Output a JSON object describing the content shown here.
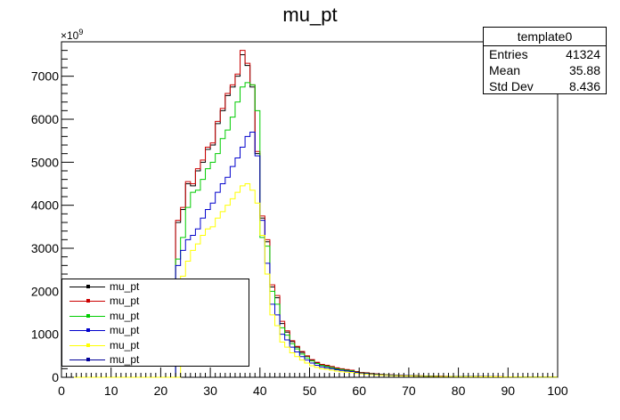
{
  "chart_data": {
    "type": "histogram",
    "title": "mu_pt",
    "xlim": [
      0,
      100
    ],
    "ylim": [
      0,
      7800
    ],
    "y_exponent_label": "×10",
    "y_exponent": "9",
    "x_ticks": [
      0,
      10,
      20,
      30,
      40,
      50,
      60,
      70,
      80,
      90,
      100
    ],
    "y_ticks": [
      0,
      1000,
      2000,
      3000,
      4000,
      5000,
      6000,
      7000
    ],
    "bin_width": 1,
    "x_start": 0,
    "series": [
      {
        "name": "mu_pt",
        "color": "#000000",
        "values": [
          0,
          0,
          0,
          0,
          0,
          0,
          0,
          0,
          0,
          0,
          0,
          0,
          0,
          0,
          0,
          0,
          0,
          0,
          0,
          0,
          0,
          0,
          0,
          3600,
          3900,
          4500,
          4450,
          4800,
          5000,
          5300,
          5400,
          5900,
          6200,
          6550,
          6750,
          7000,
          7500,
          7250,
          6750,
          5200,
          3700,
          3150,
          2100,
          1850,
          1250,
          1050,
          830,
          700,
          580,
          490,
          400,
          340,
          290,
          270,
          240,
          210,
          190,
          170,
          160,
          130,
          110,
          100,
          85,
          75,
          65,
          60,
          55,
          50,
          45,
          42,
          40,
          36,
          33,
          30,
          28,
          26,
          24,
          22,
          21,
          20,
          19,
          18,
          17,
          16,
          15,
          14,
          13,
          12,
          12,
          11,
          10,
          10,
          9,
          9,
          8,
          8,
          7,
          7,
          6,
          6
        ]
      },
      {
        "name": "mu_pt",
        "color": "#cc0000",
        "values": [
          0,
          0,
          0,
          0,
          0,
          0,
          0,
          0,
          0,
          0,
          0,
          0,
          0,
          0,
          0,
          0,
          0,
          0,
          0,
          0,
          0,
          0,
          0,
          3650,
          3950,
          4550,
          4500,
          4850,
          5050,
          5350,
          5450,
          5950,
          6250,
          6600,
          6800,
          7050,
          7600,
          7300,
          6800,
          5250,
          3750,
          3200,
          2150,
          1900,
          1300,
          1080,
          850,
          720,
          600,
          500,
          410,
          350,
          300,
          280,
          250,
          220,
          200,
          180,
          165,
          135,
          115,
          105,
          90,
          80,
          70,
          62,
          57,
          52,
          47,
          44,
          41,
          37,
          34,
          31,
          29,
          27,
          25,
          23,
          22,
          21,
          20,
          19,
          18,
          17,
          16,
          15,
          14,
          13,
          12,
          11,
          10,
          10,
          9,
          9,
          8,
          8,
          7,
          7,
          6,
          6
        ]
      },
      {
        "name": "mu_pt",
        "color": "#00cc00",
        "values": [
          0,
          0,
          0,
          0,
          0,
          0,
          0,
          0,
          0,
          0,
          0,
          0,
          0,
          0,
          0,
          0,
          0,
          0,
          0,
          0,
          0,
          0,
          0,
          2750,
          3250,
          3950,
          4300,
          4350,
          4600,
          4850,
          5000,
          5200,
          5550,
          5750,
          6050,
          6400,
          6750,
          6850,
          6800,
          6200,
          3250,
          3050,
          2000,
          1700,
          1150,
          980,
          780,
          660,
          540,
          450,
          380,
          320,
          275,
          250,
          225,
          195,
          180,
          160,
          150,
          120,
          100,
          95,
          80,
          70,
          62,
          56,
          51,
          47,
          42,
          40,
          37,
          34,
          31,
          28,
          26,
          24,
          22,
          21,
          20,
          19,
          18,
          17,
          16,
          15,
          14,
          13,
          12,
          11,
          11,
          10,
          9,
          9,
          8,
          8,
          7,
          7,
          6,
          6,
          5,
          5
        ]
      },
      {
        "name": "mu_pt",
        "color": "#0000cc",
        "values": [
          0,
          0,
          0,
          0,
          0,
          0,
          0,
          0,
          0,
          0,
          0,
          0,
          0,
          0,
          0,
          0,
          0,
          0,
          0,
          0,
          0,
          0,
          0,
          2600,
          2950,
          3200,
          3300,
          3450,
          3700,
          3900,
          4050,
          4300,
          4500,
          4650,
          4900,
          5100,
          5350,
          5600,
          5700,
          5150,
          3650,
          2650,
          1700,
          1450,
          1000,
          870,
          700,
          590,
          480,
          400,
          330,
          280,
          240,
          220,
          200,
          175,
          160,
          145,
          135,
          110,
          95,
          88,
          74,
          65,
          58,
          52,
          48,
          44,
          40,
          38,
          35,
          32,
          29,
          27,
          25,
          23,
          21,
          20,
          19,
          18,
          17,
          16,
          15,
          14,
          13,
          12,
          11,
          10,
          10,
          9,
          9,
          8,
          8,
          7,
          7,
          6,
          6,
          5,
          5,
          5
        ]
      },
      {
        "name": "mu_pt",
        "color": "#ffff00",
        "values": [
          0,
          0,
          0,
          0,
          0,
          0,
          0,
          0,
          0,
          0,
          0,
          0,
          0,
          0,
          0,
          0,
          0,
          0,
          0,
          0,
          0,
          0,
          0,
          0,
          2350,
          2700,
          2950,
          3100,
          3300,
          3450,
          3500,
          3700,
          3850,
          4000,
          4150,
          4300,
          4450,
          4500,
          4350,
          4050,
          3300,
          2400,
          1450,
          1200,
          820,
          700,
          570,
          480,
          400,
          330,
          270,
          230,
          200,
          185,
          165,
          145,
          130,
          120,
          110,
          90,
          80,
          72,
          62,
          54,
          48,
          44,
          40,
          37,
          34,
          32,
          30,
          27,
          25,
          23,
          21,
          20,
          19,
          18,
          17,
          16,
          15,
          14,
          13,
          12,
          11,
          10,
          10,
          9,
          9,
          8,
          8,
          7,
          7,
          6,
          6,
          5,
          5,
          5,
          4,
          4
        ]
      },
      {
        "name": "mu_pt",
        "color": "#000099",
        "values": []
      }
    ],
    "stats": {
      "title": "template0",
      "rows": [
        {
          "label": "Entries",
          "value": "41324"
        },
        {
          "label": "Mean",
          "value": "35.88"
        },
        {
          "label": "Std Dev",
          "value": "8.436"
        }
      ]
    },
    "legend": {
      "placement": "bottom-left"
    }
  }
}
